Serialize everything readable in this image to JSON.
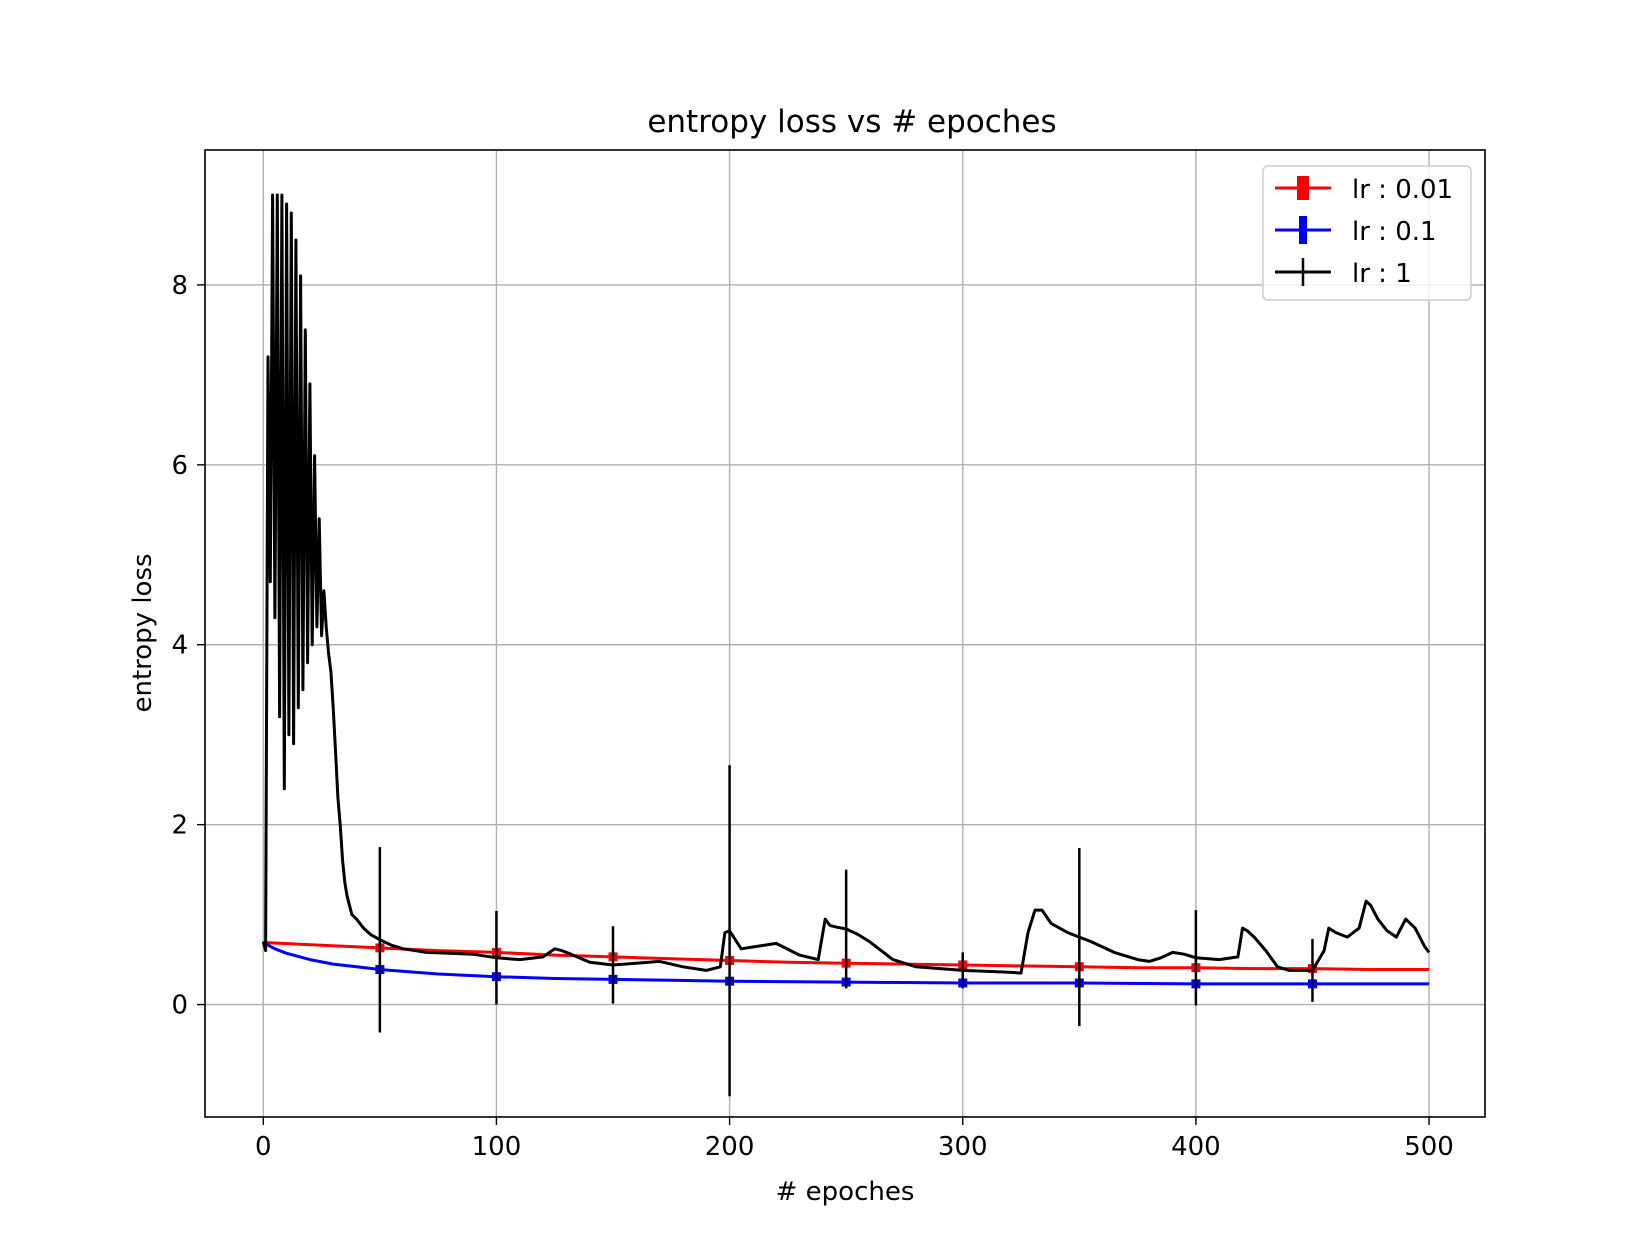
{
  "chart_data": {
    "type": "line",
    "title": "entropy loss vs # epoches",
    "xlabel": "# epoches",
    "ylabel": "entropy loss",
    "xlim": [
      -25,
      524
    ],
    "ylim": [
      -1.25,
      9.5
    ],
    "xticks": [
      0,
      100,
      200,
      300,
      400,
      500
    ],
    "yticks": [
      0,
      2,
      4,
      6,
      8
    ],
    "grid": true,
    "legend_position": "top-right",
    "series": [
      {
        "name": "lr : 0.01",
        "color": "#ff0000",
        "marker": "square",
        "x": [
          0,
          25,
          50,
          75,
          100,
          125,
          150,
          175,
          200,
          225,
          250,
          275,
          300,
          325,
          350,
          375,
          400,
          425,
          450,
          475,
          500
        ],
        "y": [
          0.69,
          0.66,
          0.63,
          0.6,
          0.58,
          0.55,
          0.53,
          0.51,
          0.49,
          0.47,
          0.46,
          0.45,
          0.44,
          0.43,
          0.42,
          0.41,
          0.41,
          0.4,
          0.4,
          0.39,
          0.39
        ],
        "errorbars": {
          "x": [
            50,
            100,
            150,
            200,
            250,
            300,
            350,
            400,
            450
          ],
          "err": [
            0.03,
            0.03,
            0.03,
            0.03,
            0.03,
            0.03,
            0.03,
            0.03,
            0.03
          ]
        }
      },
      {
        "name": "lr : 0.1",
        "color": "#0000ff",
        "marker": "square",
        "x": [
          0,
          5,
          10,
          20,
          30,
          40,
          50,
          75,
          100,
          125,
          150,
          175,
          200,
          250,
          300,
          350,
          400,
          450,
          500
        ],
        "y": [
          0.69,
          0.62,
          0.57,
          0.5,
          0.45,
          0.42,
          0.39,
          0.34,
          0.31,
          0.29,
          0.28,
          0.27,
          0.26,
          0.25,
          0.24,
          0.24,
          0.23,
          0.23,
          0.23
        ],
        "errorbars": {
          "x": [
            50,
            100,
            150,
            200,
            250,
            300,
            350,
            400,
            450
          ],
          "err": [
            0.05,
            0.05,
            0.05,
            0.05,
            0.05,
            0.05,
            0.05,
            0.05,
            0.05
          ]
        }
      },
      {
        "name": "lr : 1",
        "color": "#000000",
        "marker": "none",
        "x": [
          0,
          1,
          2,
          3,
          4,
          5,
          6,
          7,
          8,
          9,
          10,
          11,
          12,
          13,
          14,
          15,
          16,
          17,
          18,
          19,
          20,
          21,
          22,
          23,
          24,
          25,
          26,
          27,
          28,
          29,
          30,
          31,
          32,
          33,
          34,
          35,
          36,
          38,
          40,
          43,
          46,
          50,
          55,
          60,
          70,
          80,
          90,
          100,
          110,
          120,
          125,
          128,
          132,
          140,
          150,
          160,
          170,
          180,
          190,
          196,
          198,
          200,
          205,
          210,
          220,
          230,
          238,
          241,
          243,
          246,
          250,
          255,
          260,
          270,
          280,
          300,
          320,
          325,
          328,
          331,
          334,
          338,
          345,
          355,
          365,
          375,
          380,
          385,
          390,
          395,
          400,
          410,
          418,
          420,
          422,
          425,
          430,
          435,
          440,
          450,
          455,
          457,
          460,
          465,
          470,
          473,
          475,
          478,
          482,
          486,
          490,
          494,
          498,
          500
        ],
        "y": [
          0.7,
          0.6,
          7.2,
          4.7,
          9.0,
          4.3,
          9.0,
          3.2,
          9.0,
          2.4,
          8.9,
          3.0,
          8.8,
          2.9,
          8.5,
          3.3,
          8.1,
          3.5,
          7.5,
          3.8,
          6.9,
          4.0,
          6.1,
          4.2,
          5.4,
          4.1,
          4.6,
          4.2,
          3.9,
          3.7,
          3.3,
          2.8,
          2.3,
          2.0,
          1.6,
          1.35,
          1.2,
          1.0,
          0.95,
          0.85,
          0.78,
          0.72,
          0.66,
          0.62,
          0.58,
          0.57,
          0.56,
          0.52,
          0.5,
          0.53,
          0.62,
          0.6,
          0.56,
          0.47,
          0.44,
          0.46,
          0.48,
          0.42,
          0.38,
          0.42,
          0.8,
          0.82,
          0.62,
          0.64,
          0.68,
          0.55,
          0.5,
          0.95,
          0.88,
          0.86,
          0.84,
          0.78,
          0.7,
          0.5,
          0.42,
          0.38,
          0.36,
          0.35,
          0.8,
          1.05,
          1.05,
          0.9,
          0.8,
          0.7,
          0.58,
          0.5,
          0.48,
          0.52,
          0.58,
          0.56,
          0.52,
          0.5,
          0.53,
          0.85,
          0.82,
          0.75,
          0.6,
          0.42,
          0.38,
          0.38,
          0.6,
          0.85,
          0.8,
          0.75,
          0.85,
          1.15,
          1.1,
          0.95,
          0.82,
          0.75,
          0.95,
          0.85,
          0.65,
          0.58
        ],
        "errorbars": {
          "x": [
            50,
            100,
            150,
            200,
            250,
            300,
            350,
            400,
            450
          ],
          "err": [
            1.03,
            0.52,
            0.43,
            1.84,
            0.66,
            0.2,
            0.99,
            0.53,
            0.35
          ]
        }
      }
    ]
  }
}
